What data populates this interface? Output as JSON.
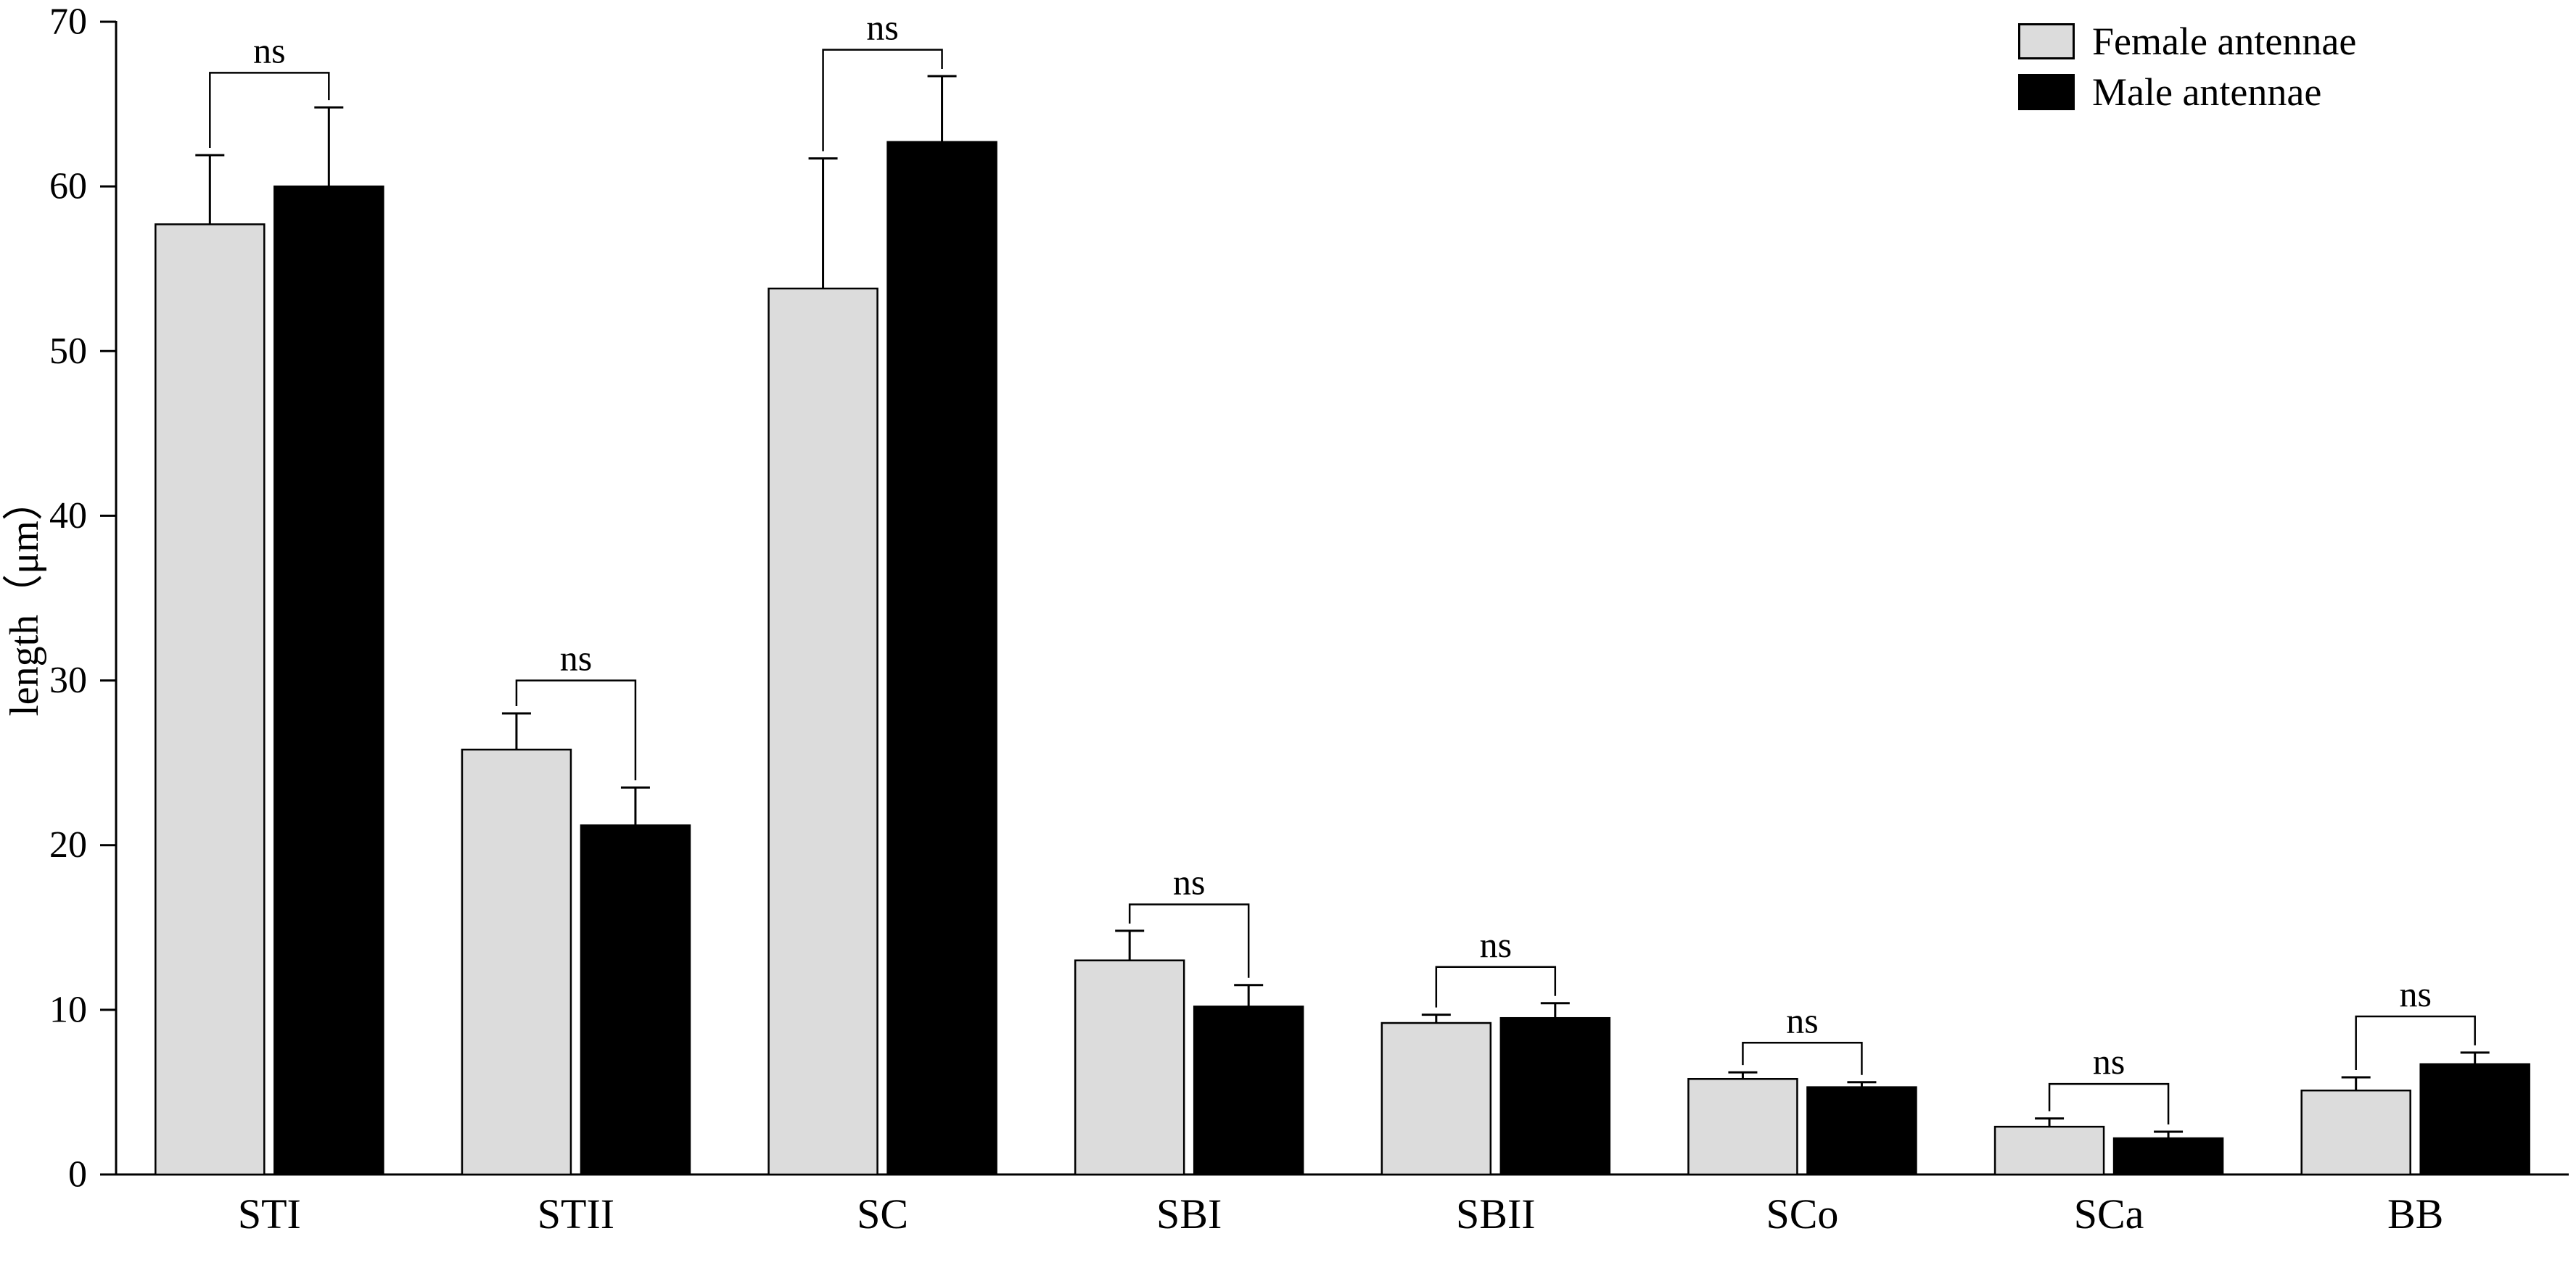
{
  "chart_data": {
    "type": "bar",
    "title": "",
    "xlabel": "",
    "ylabel": "length（μm）",
    "ylim": [
      0,
      70
    ],
    "yticks": [
      0,
      10,
      20,
      30,
      40,
      50,
      60,
      70
    ],
    "grid": false,
    "legend_position": "top-right",
    "categories": [
      "STI",
      "STII",
      "SC",
      "SBI",
      "SBII",
      "SCo",
      "SCa",
      "BB"
    ],
    "series": [
      {
        "name": "Female antennae",
        "color": "#dcdcdc",
        "values": [
          57.7,
          25.8,
          53.8,
          13.0,
          9.2,
          5.8,
          2.9,
          5.1
        ],
        "errors": [
          4.2,
          2.2,
          7.9,
          1.8,
          0.5,
          0.4,
          0.5,
          0.8
        ]
      },
      {
        "name": "Male antennae",
        "color": "#000000",
        "values": [
          60.0,
          21.2,
          62.7,
          10.2,
          9.5,
          5.3,
          2.2,
          6.7
        ],
        "errors": [
          4.8,
          2.3,
          4.0,
          1.3,
          0.9,
          0.3,
          0.4,
          0.7
        ]
      }
    ],
    "annotations": {
      "label": "ns",
      "bracket_y": [
        66.9,
        30.0,
        68.3,
        16.4,
        12.6,
        8.0,
        5.5,
        9.6
      ]
    },
    "colors": {
      "axis": "#000000",
      "female_fill": "#dcdcdc",
      "male_fill": "#000000"
    }
  }
}
